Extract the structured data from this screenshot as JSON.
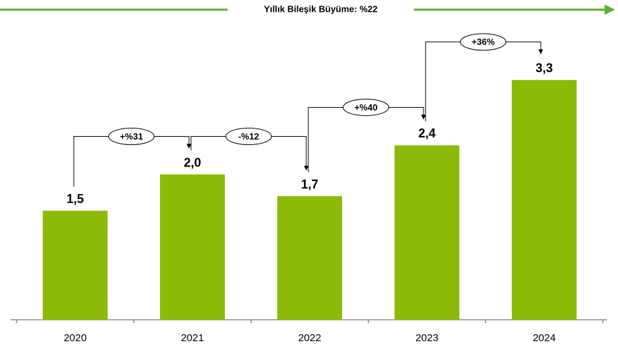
{
  "chart_data": {
    "type": "bar",
    "title": "Yıllık Bileşik Büyüme: %22",
    "categories": [
      "2020",
      "2021",
      "2022",
      "2023",
      "2024"
    ],
    "values": [
      1.5,
      2.0,
      1.7,
      2.4,
      3.3
    ],
    "value_labels": [
      "1,5",
      "2,0",
      "1,7",
      "2,4",
      "3,3"
    ],
    "color": "#8cba08",
    "ylim": [
      0,
      4.4
    ],
    "annotations": [
      "+%31",
      "-%12",
      "+%40",
      "+36%"
    ]
  }
}
